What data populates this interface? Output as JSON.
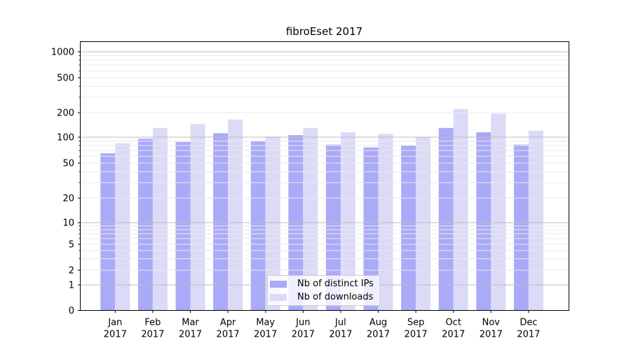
{
  "chart_data": {
    "type": "bar",
    "title": "fibroEset 2017",
    "categories": [
      "Jan 2017",
      "Feb 2017",
      "Mar 2017",
      "Apr 2017",
      "May 2017",
      "Jun 2017",
      "Jul 2017",
      "Aug 2017",
      "Sep 2017",
      "Oct 2017",
      "Nov 2017",
      "Dec 2017"
    ],
    "series": [
      {
        "name": "Nb of distinct IPs",
        "color": "#aaaaf8",
        "values": [
          65,
          96,
          88,
          112,
          90,
          106,
          82,
          76,
          80,
          130,
          115,
          82
        ]
      },
      {
        "name": "Nb of downloads",
        "color": "#dbdbf8",
        "values": [
          85,
          130,
          145,
          165,
          102,
          130,
          115,
          110,
          100,
          220,
          195,
          120
        ]
      }
    ],
    "yscale": "symlog",
    "y_ticks": [
      0,
      1,
      2,
      5,
      10,
      20,
      50,
      100,
      200,
      500,
      1000
    ],
    "y_major_gridlines": [
      1,
      10,
      100,
      1000
    ],
    "y_minor_gridlines": [
      2,
      5,
      20,
      50,
      200,
      500,
      3,
      4,
      6,
      7,
      8,
      9,
      30,
      40,
      60,
      70,
      80,
      90,
      300,
      400,
      600,
      700,
      800,
      900
    ],
    "ylim": [
      0,
      1200
    ],
    "xlabel": "",
    "ylabel": "",
    "grid": "both",
    "legend_position": "lower center",
    "colors": {
      "grid_major": "#bdbdbd",
      "grid_minor": "#e9e9e9",
      "axis": "#000000",
      "text": "#000000"
    }
  }
}
